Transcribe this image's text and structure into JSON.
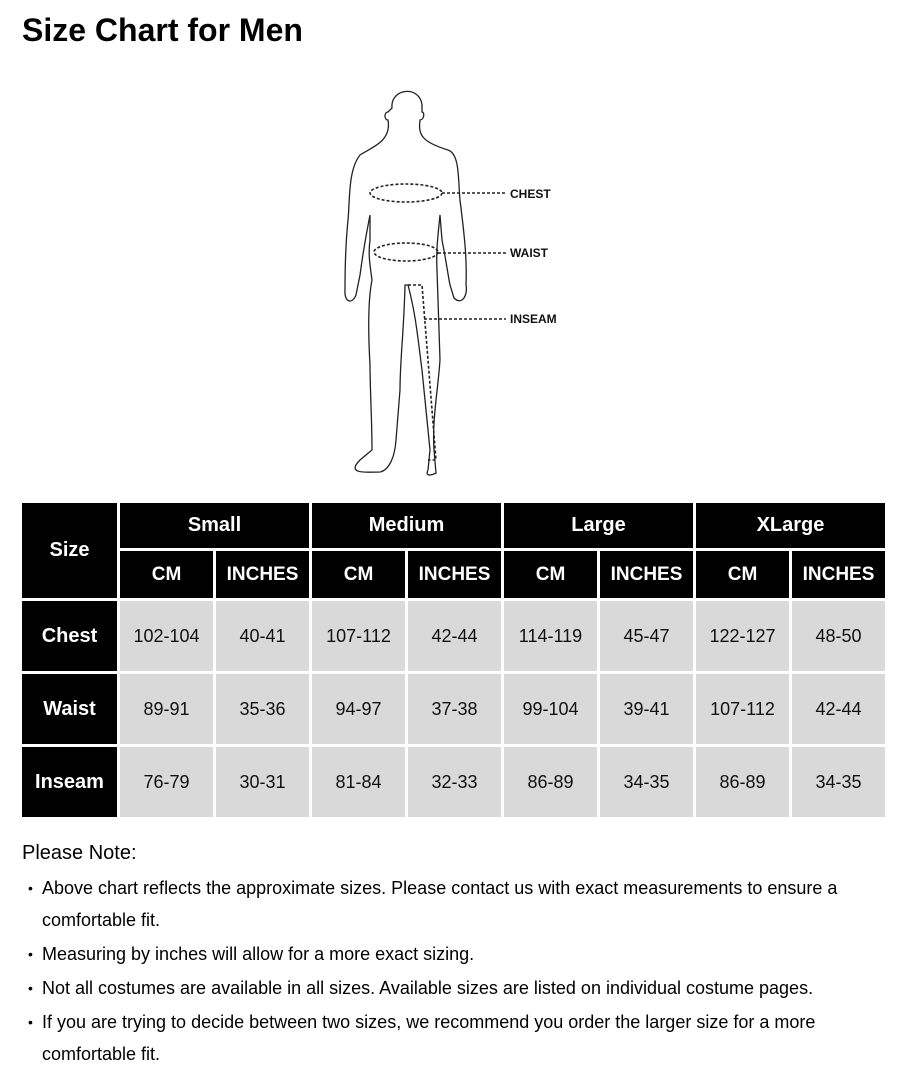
{
  "title": "Size Chart for Men",
  "figure": {
    "labels": [
      "CHEST",
      "WAIST",
      "INSEAM"
    ]
  },
  "table": {
    "corner": "Size",
    "groups": [
      "Small",
      "Medium",
      "Large",
      "XLarge"
    ],
    "units": [
      "CM",
      "INCHES"
    ],
    "rows": [
      {
        "label": "Chest",
        "values": [
          "102-104",
          "40-41",
          "107-112",
          "42-44",
          "114-119",
          "45-47",
          "122-127",
          "48-50"
        ]
      },
      {
        "label": "Waist",
        "values": [
          "89-91",
          "35-36",
          "94-97",
          "37-38",
          "99-104",
          "39-41",
          "107-112",
          "42-44"
        ]
      },
      {
        "label": "Inseam",
        "values": [
          "76-79",
          "30-31",
          "81-84",
          "32-33",
          "86-89",
          "34-35",
          "86-89",
          "34-35"
        ]
      }
    ]
  },
  "notes": {
    "title": "Please Note:",
    "items": [
      "Above chart reflects the approximate sizes. Please contact us with exact measurements to ensure a comfortable fit.",
      "Measuring by inches will allow for a more exact sizing.",
      "Not all costumes are available in all sizes. Available sizes are listed on individual costume pages.",
      "If you are trying to decide between two sizes, we recommend you order the larger size for a more comfortable fit."
    ]
  }
}
